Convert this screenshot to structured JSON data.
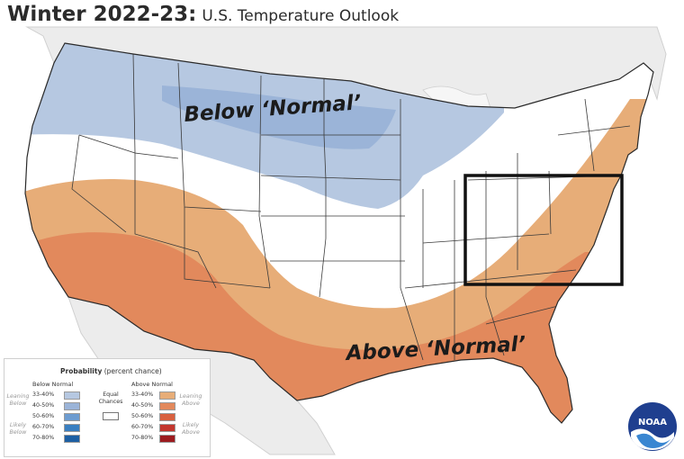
{
  "header": {
    "title": "Winter 2022-23:",
    "subtitle": "U.S. Temperature Outlook"
  },
  "map": {
    "below_label": "Below ‘Normal’",
    "above_label": "Above ‘Normal’",
    "highlight_box": "Ohio Valley / Mid-Atlantic region outlined in black"
  },
  "legend": {
    "title": "Probability",
    "title_note": "(percent chance)",
    "below_heading": "Below Normal",
    "above_heading": "Above Normal",
    "equal_chances": "Equal Chances",
    "leaning_below": "Leaning Below",
    "likely_below": "Likely Below",
    "leaning_above": "Leaning Above",
    "likely_above": "Likely Above",
    "below_rows": [
      {
        "label": "33-40%",
        "color": "#b6c8e1"
      },
      {
        "label": "40-50%",
        "color": "#9bb4d8"
      },
      {
        "label": "50-60%",
        "color": "#6d9cd0"
      },
      {
        "label": "60-70%",
        "color": "#3a7fc1"
      },
      {
        "label": "70-80%",
        "color": "#1d5fa3"
      }
    ],
    "above_rows": [
      {
        "label": "33-40%",
        "color": "#e7ad78"
      },
      {
        "label": "40-50%",
        "color": "#e2895c"
      },
      {
        "label": "50-60%",
        "color": "#d8603f"
      },
      {
        "label": "60-70%",
        "color": "#c3362e"
      },
      {
        "label": "70-80%",
        "color": "#9c1b1f"
      }
    ]
  },
  "logo": {
    "text": "NOAA"
  },
  "colors": {
    "background_land": "#ffffff",
    "neighbor_land": "#ececec",
    "water": "#f6f6f6",
    "below_33_40": "#b6c8e1",
    "below_40_50": "#9bb4d8",
    "above_33_40": "#e7ad78",
    "above_40_50": "#e2895c"
  }
}
